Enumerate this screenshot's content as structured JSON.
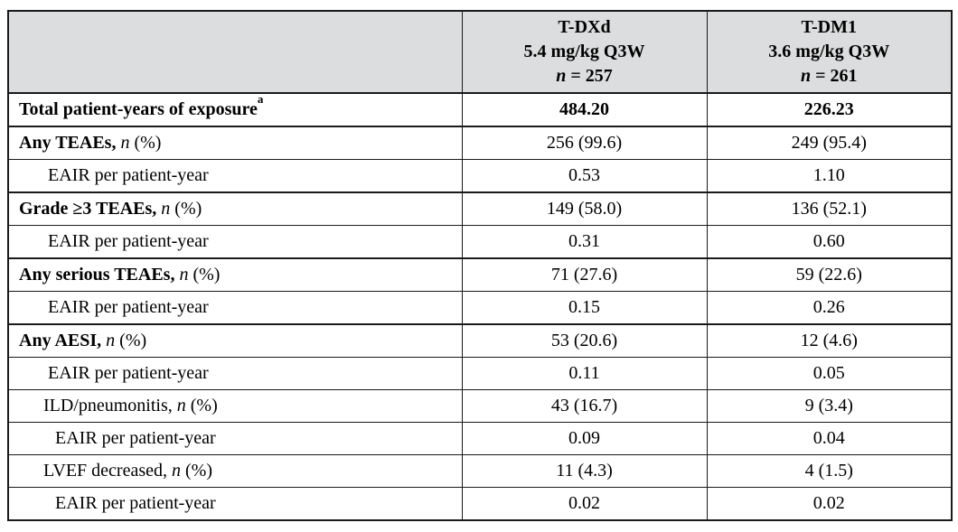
{
  "colors": {
    "header_bg": "#dcddde",
    "border": "#1a1a1a",
    "text": "#000000",
    "page_bg": "#ffffff"
  },
  "table": {
    "corner_label": "",
    "columns": [
      {
        "drug": "T-DXd",
        "dose": "5.4 mg/kg Q3W",
        "n_italic": "n",
        "n_rest": " = 257"
      },
      {
        "drug": "T-DM1",
        "dose": "3.6 mg/kg Q3W",
        "n_italic": "n",
        "n_rest": " = 261"
      }
    ],
    "rows": [
      {
        "name": "total-patient-years",
        "level": "1",
        "group_start": true,
        "bold_values": true,
        "label_parts": [
          {
            "text": "Total patient-years of exposure",
            "bold": true
          },
          {
            "text": "a",
            "bold": true,
            "sup": true
          }
        ],
        "values": [
          "484.20",
          "226.23"
        ]
      },
      {
        "name": "any-teaes",
        "level": "1",
        "group_start": true,
        "label_parts": [
          {
            "text": "Any TEAEs, ",
            "bold": true
          },
          {
            "text": "n",
            "italic": true
          },
          {
            "text": " (%)"
          }
        ],
        "values": [
          "256 (99.6)",
          "249 (95.4)"
        ]
      },
      {
        "name": "eair-any-teaes",
        "level": "2",
        "label_parts": [
          {
            "text": "EAIR per patient-year"
          }
        ],
        "values": [
          "0.53",
          "1.10"
        ]
      },
      {
        "name": "grade-ge3-teaes",
        "level": "1",
        "group_start": true,
        "label_parts": [
          {
            "text": "Grade ≥3 TEAEs, ",
            "bold": true
          },
          {
            "text": "n",
            "italic": true
          },
          {
            "text": " (%)"
          }
        ],
        "values": [
          "149 (58.0)",
          "136 (52.1)"
        ]
      },
      {
        "name": "eair-grade-ge3",
        "level": "2",
        "label_parts": [
          {
            "text": "EAIR per patient-year"
          }
        ],
        "values": [
          "0.31",
          "0.60"
        ]
      },
      {
        "name": "any-serious-teaes",
        "level": "1",
        "group_start": true,
        "label_parts": [
          {
            "text": "Any serious TEAEs, ",
            "bold": true
          },
          {
            "text": "n",
            "italic": true
          },
          {
            "text": " (%)"
          }
        ],
        "values": [
          "71 (27.6)",
          "59 (22.6)"
        ]
      },
      {
        "name": "eair-serious-teaes",
        "level": "2",
        "label_parts": [
          {
            "text": "EAIR per patient-year"
          }
        ],
        "values": [
          "0.15",
          "0.26"
        ]
      },
      {
        "name": "any-aesi",
        "level": "1",
        "group_start": true,
        "label_parts": [
          {
            "text": "Any AESI, ",
            "bold": true
          },
          {
            "text": "n",
            "italic": true
          },
          {
            "text": " (%)"
          }
        ],
        "values": [
          "53 (20.6)",
          "12 (4.6)"
        ]
      },
      {
        "name": "eair-aesi",
        "level": "2",
        "label_parts": [
          {
            "text": "EAIR per patient-year"
          }
        ],
        "values": [
          "0.11",
          "0.05"
        ]
      },
      {
        "name": "ild-pneumonitis",
        "level": "sub",
        "label_parts": [
          {
            "text": "ILD/pneumonitis, "
          },
          {
            "text": "n",
            "italic": true
          },
          {
            "text": " (%)"
          }
        ],
        "values": [
          "43 (16.7)",
          "9 (3.4)"
        ]
      },
      {
        "name": "eair-ild-pneumonitis",
        "level": "3",
        "label_parts": [
          {
            "text": "EAIR per patient-year"
          }
        ],
        "values": [
          "0.09",
          "0.04"
        ]
      },
      {
        "name": "lvef-decreased",
        "level": "sub",
        "label_parts": [
          {
            "text": "LVEF decreased, "
          },
          {
            "text": "n",
            "italic": true
          },
          {
            "text": " (%)"
          }
        ],
        "values": [
          "11 (4.3)",
          "4 (1.5)"
        ]
      },
      {
        "name": "eair-lvef-decreased",
        "level": "3",
        "label_parts": [
          {
            "text": "EAIR per patient-year"
          }
        ],
        "values": [
          "0.02",
          "0.02"
        ]
      }
    ]
  }
}
